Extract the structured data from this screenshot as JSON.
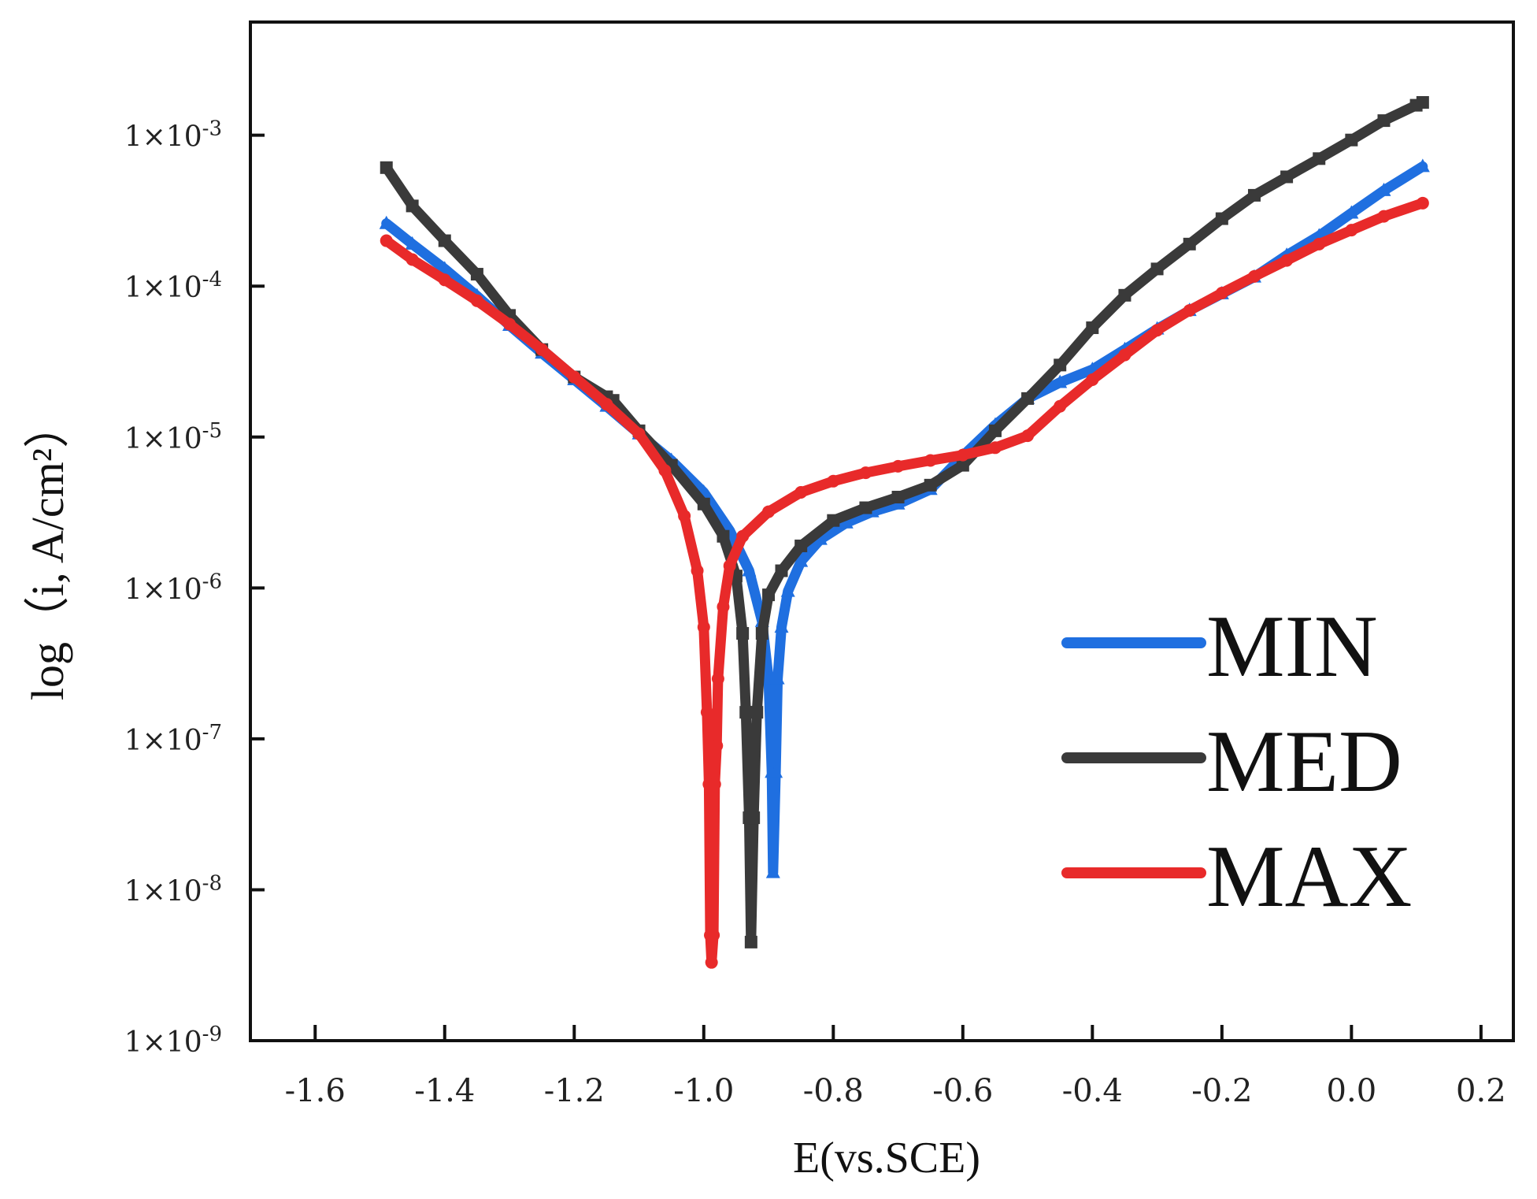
{
  "chart_data": {
    "type": "line",
    "title": "",
    "xlabel": "E(vs.SCE)",
    "ylabel": "log（i, A/cm²）",
    "xlim": [
      -1.7,
      0.25
    ],
    "ylim_log10": [
      -9,
      -2.25
    ],
    "y_scale": "log",
    "grid": false,
    "legend_position": "right",
    "x_ticks": [
      -1.6,
      -1.4,
      -1.2,
      -1.0,
      -0.8,
      -0.6,
      -0.4,
      -0.2,
      0.0,
      0.2
    ],
    "x_tick_labels": [
      "-1.6",
      "-1.4",
      "-1.2",
      "-1.0",
      "-0.8",
      "-0.6",
      "-0.4",
      "-0.2",
      "0.0",
      "0.2"
    ],
    "y_ticks": [
      {
        "exp": -3,
        "mantissa": "1×10",
        "power": "-3"
      },
      {
        "exp": -4,
        "mantissa": "1×10",
        "power": "-4"
      },
      {
        "exp": -5,
        "mantissa": "1×10",
        "power": "-5"
      },
      {
        "exp": -6,
        "mantissa": "1×10",
        "power": "-6"
      },
      {
        "exp": -7,
        "mantissa": "1×10",
        "power": "-7"
      },
      {
        "exp": -8,
        "mantissa": "1×10",
        "power": "-8"
      },
      {
        "exp": -9,
        "mantissa": "1×10",
        "power": "-9"
      }
    ],
    "series": [
      {
        "name": "MIN",
        "color": "#1f6fe0",
        "marker": "triangle",
        "points": [
          [
            -1.49,
            0.00026
          ],
          [
            -1.45,
            0.00019
          ],
          [
            -1.4,
            0.00013
          ],
          [
            -1.35,
            8.6e-05
          ],
          [
            -1.3,
            5.5e-05
          ],
          [
            -1.25,
            3.6e-05
          ],
          [
            -1.2,
            2.4e-05
          ],
          [
            -1.15,
            1.6e-05
          ],
          [
            -1.1,
            1.05e-05
          ],
          [
            -1.05,
            7e-06
          ],
          [
            -1.0,
            4.3e-06
          ],
          [
            -0.96,
            2.4e-06
          ],
          [
            -0.93,
            1.3e-06
          ],
          [
            -0.91,
            6e-07
          ],
          [
            -0.9,
            2.5e-07
          ],
          [
            -0.895,
            6e-08
          ],
          [
            -0.893,
            1.3e-08
          ],
          [
            -0.889,
            6e-08
          ],
          [
            -0.886,
            2.5e-07
          ],
          [
            -0.88,
            5.5e-07
          ],
          [
            -0.87,
            9.5e-07
          ],
          [
            -0.85,
            1.5e-06
          ],
          [
            -0.82,
            2.1e-06
          ],
          [
            -0.78,
            2.7e-06
          ],
          [
            -0.74,
            3.2e-06
          ],
          [
            -0.7,
            3.6e-06
          ],
          [
            -0.65,
            4.5e-06
          ],
          [
            -0.6,
            7.5e-06
          ],
          [
            -0.55,
            1.2e-05
          ],
          [
            -0.5,
            1.8e-05
          ],
          [
            -0.45,
            2.3e-05
          ],
          [
            -0.4,
            2.8e-05
          ],
          [
            -0.35,
            3.8e-05
          ],
          [
            -0.3,
            5.2e-05
          ],
          [
            -0.25,
            6.9e-05
          ],
          [
            -0.2,
            8.9e-05
          ],
          [
            -0.15,
            0.000115
          ],
          [
            -0.1,
            0.00016
          ],
          [
            -0.05,
            0.000215
          ],
          [
            0.0,
            0.000305
          ],
          [
            0.05,
            0.00043
          ],
          [
            0.11,
            0.00062
          ]
        ]
      },
      {
        "name": "MED",
        "color": "#3a3a3a",
        "marker": "square",
        "points": [
          [
            -1.49,
            0.00061
          ],
          [
            -1.45,
            0.00034
          ],
          [
            -1.4,
            0.0002
          ],
          [
            -1.35,
            0.00012
          ],
          [
            -1.3,
            6.4e-05
          ],
          [
            -1.25,
            3.8e-05
          ],
          [
            -1.2,
            2.5e-05
          ],
          [
            -1.15,
            1.85e-05
          ],
          [
            -1.14,
            1.75e-05
          ],
          [
            -1.1,
            1.1e-05
          ],
          [
            -1.05,
            6.5e-06
          ],
          [
            -1.0,
            3.6e-06
          ],
          [
            -0.97,
            2.2e-06
          ],
          [
            -0.95,
            1.2e-06
          ],
          [
            -0.94,
            5e-07
          ],
          [
            -0.935,
            1.5e-07
          ],
          [
            -0.93,
            3e-08
          ],
          [
            -0.927,
            4.5e-09
          ],
          [
            -0.923,
            3e-08
          ],
          [
            -0.918,
            1.5e-07
          ],
          [
            -0.91,
            5e-07
          ],
          [
            -0.9,
            9e-07
          ],
          [
            -0.88,
            1.3e-06
          ],
          [
            -0.85,
            1.9e-06
          ],
          [
            -0.8,
            2.8e-06
          ],
          [
            -0.75,
            3.4e-06
          ],
          [
            -0.7,
            4e-06
          ],
          [
            -0.65,
            4.8e-06
          ],
          [
            -0.6,
            6.5e-06
          ],
          [
            -0.55,
            1.1e-05
          ],
          [
            -0.5,
            1.8e-05
          ],
          [
            -0.45,
            3e-05
          ],
          [
            -0.4,
            5.3e-05
          ],
          [
            -0.35,
            8.7e-05
          ],
          [
            -0.3,
            0.00013
          ],
          [
            -0.25,
            0.00019
          ],
          [
            -0.2,
            0.00028
          ],
          [
            -0.15,
            0.0004
          ],
          [
            -0.1,
            0.00053
          ],
          [
            -0.05,
            0.0007
          ],
          [
            0.0,
            0.00093
          ],
          [
            0.05,
            0.00125
          ],
          [
            0.1,
            0.00158
          ],
          [
            0.11,
            0.00165
          ]
        ]
      },
      {
        "name": "MAX",
        "color": "#e82a2a",
        "marker": "circle",
        "points": [
          [
            -1.49,
            0.0002
          ],
          [
            -1.45,
            0.00015
          ],
          [
            -1.4,
            0.00011
          ],
          [
            -1.35,
            8e-05
          ],
          [
            -1.3,
            5.6e-05
          ],
          [
            -1.25,
            3.8e-05
          ],
          [
            -1.2,
            2.5e-05
          ],
          [
            -1.15,
            1.65e-05
          ],
          [
            -1.1,
            1.05e-05
          ],
          [
            -1.06,
            6e-06
          ],
          [
            -1.03,
            3e-06
          ],
          [
            -1.01,
            1.3e-06
          ],
          [
            -1.0,
            5.5e-07
          ],
          [
            -0.995,
            1.5e-07
          ],
          [
            -0.992,
            5e-08
          ],
          [
            -0.99,
            5e-09
          ],
          [
            -0.988,
            3.3e-09
          ],
          [
            -0.985,
            5e-09
          ],
          [
            -0.983,
            5e-08
          ],
          [
            -0.98,
            9e-08
          ],
          [
            -0.978,
            2.5e-07
          ],
          [
            -0.97,
            7.5e-07
          ],
          [
            -0.96,
            1.4e-06
          ],
          [
            -0.94,
            2.2e-06
          ],
          [
            -0.9,
            3.2e-06
          ],
          [
            -0.85,
            4.3e-06
          ],
          [
            -0.8,
            5.1e-06
          ],
          [
            -0.75,
            5.8e-06
          ],
          [
            -0.7,
            6.4e-06
          ],
          [
            -0.65,
            7e-06
          ],
          [
            -0.6,
            7.6e-06
          ],
          [
            -0.55,
            8.5e-06
          ],
          [
            -0.5,
            1.02e-05
          ],
          [
            -0.45,
            1.6e-05
          ],
          [
            -0.4,
            2.4e-05
          ],
          [
            -0.35,
            3.5e-05
          ],
          [
            -0.3,
            5.1e-05
          ],
          [
            -0.25,
            6.9e-05
          ],
          [
            -0.2,
            9e-05
          ],
          [
            -0.15,
            0.000116
          ],
          [
            -0.1,
            0.000148
          ],
          [
            -0.05,
            0.00019
          ],
          [
            0.0,
            0.000235
          ],
          [
            0.05,
            0.00029
          ],
          [
            0.11,
            0.000355
          ]
        ]
      }
    ]
  }
}
